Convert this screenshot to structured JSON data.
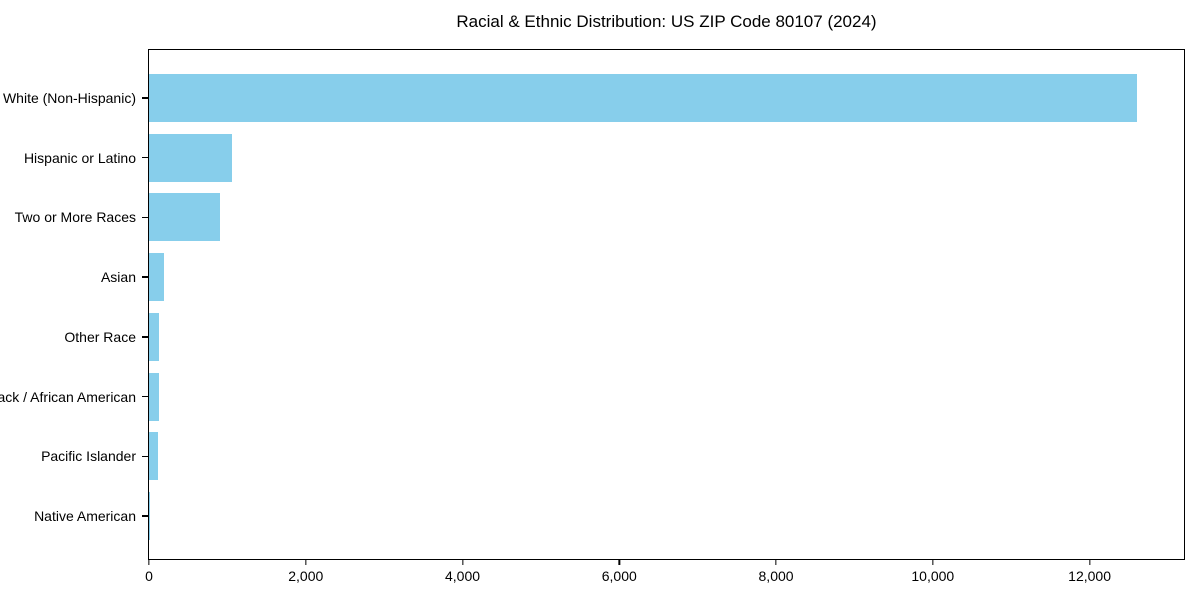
{
  "chart_data": {
    "type": "bar",
    "orientation": "horizontal",
    "title": "Racial & Ethnic Distribution: US ZIP Code 80107 (2024)",
    "categories": [
      "White (Non-Hispanic)",
      "Hispanic or Latino",
      "Two or More Races",
      "Asian",
      "Other Race",
      "Black / African American",
      "Pacific Islander",
      "Native American"
    ],
    "values": [
      12600,
      1060,
      910,
      190,
      130,
      125,
      120,
      10
    ],
    "title_text": "Racial & Ethnic Distribution: US ZIP Code 80107 (2024)",
    "xlabel": "",
    "ylabel": "",
    "xlim": [
      0,
      13230
    ],
    "x_ticks": [
      0,
      2000,
      4000,
      6000,
      8000,
      10000,
      12000
    ],
    "x_tick_labels": [
      "0",
      "2,000",
      "4,000",
      "6,000",
      "8,000",
      "10,000",
      "12,000"
    ],
    "bar_color": "#87CEEB",
    "axis_color": "#000000",
    "text_color": "#000000",
    "background_color": "#ffffff",
    "grid": false,
    "legend": null
  }
}
